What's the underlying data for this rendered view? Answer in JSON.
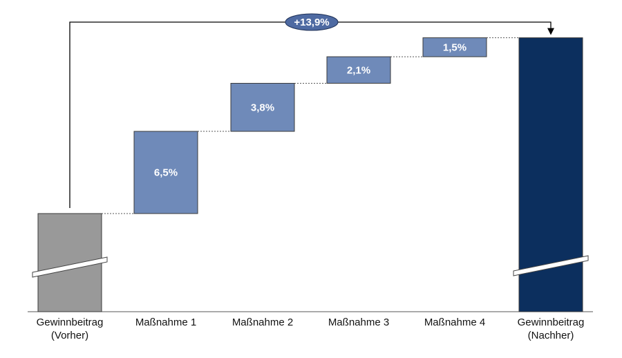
{
  "chart_data": {
    "type": "bar",
    "subtype": "waterfall",
    "categories": [
      [
        "Gewinnbeitrag",
        "(Vorher)"
      ],
      [
        "Maßnahme 1"
      ],
      [
        "Maßnahme 2"
      ],
      [
        "Maßnahme 3"
      ],
      [
        "Maßnahme 4"
      ],
      [
        "Gewinnbeitrag",
        "(Nachher)"
      ]
    ],
    "steps": [
      {
        "kind": "base",
        "value": null,
        "label": ""
      },
      {
        "kind": "increase",
        "value": 6.5,
        "label": "6,5%"
      },
      {
        "kind": "increase",
        "value": 3.8,
        "label": "3,8%"
      },
      {
        "kind": "increase",
        "value": 2.1,
        "label": "2,1%"
      },
      {
        "kind": "increase",
        "value": 1.5,
        "label": "1,5%"
      },
      {
        "kind": "total",
        "value": null,
        "label": ""
      }
    ],
    "total_change": {
      "value": 13.9,
      "label": "+13,9%"
    },
    "axis_break": true,
    "grid": false,
    "legend": "none",
    "colors": {
      "base": "#999999",
      "increase": "#6f8ab9",
      "total": "#0c2f5e",
      "connector": "#555555",
      "bracket": "#000000",
      "badge": "#4e6aa2"
    }
  }
}
